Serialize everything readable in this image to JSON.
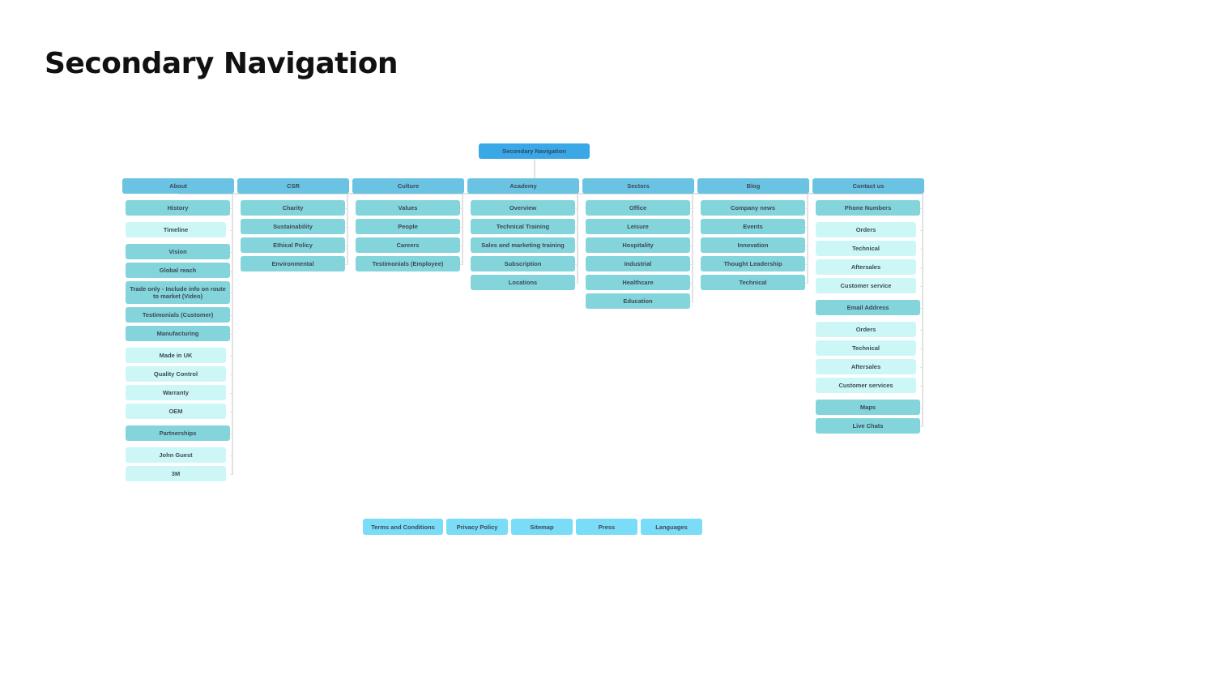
{
  "page_title": "Secondary Navigation",
  "root": "Secondary Navigation",
  "columns": [
    {
      "label": "About",
      "items": [
        {
          "label": "History",
          "level": 2
        },
        {
          "label": "Timeline",
          "level": 3
        },
        {
          "label": "Vision",
          "level": 2
        },
        {
          "label": "Global reach",
          "level": 2
        },
        {
          "label": "Trade only - Include info on route to market (Video)",
          "level": 2
        },
        {
          "label": "Testimonials (Customer)",
          "level": 2
        },
        {
          "label": "Manufacturing",
          "level": 2
        },
        {
          "label": "Made in UK",
          "level": 3
        },
        {
          "label": "Quality Control",
          "level": 3
        },
        {
          "label": "Warranty",
          "level": 3
        },
        {
          "label": "OEM",
          "level": 3
        },
        {
          "label": "Partnerships",
          "level": 2
        },
        {
          "label": "John Guest",
          "level": 3
        },
        {
          "label": "3M",
          "level": 3
        }
      ]
    },
    {
      "label": "CSR",
      "items": [
        {
          "label": "Charity",
          "level": 2
        },
        {
          "label": "Sustainability",
          "level": 2
        },
        {
          "label": "Ethical Policy",
          "level": 2
        },
        {
          "label": "Environmental",
          "level": 2
        }
      ]
    },
    {
      "label": "Culture",
      "items": [
        {
          "label": "Values",
          "level": 2
        },
        {
          "label": "People",
          "level": 2
        },
        {
          "label": "Careers",
          "level": 2
        },
        {
          "label": "Testimonials (Employee)",
          "level": 2
        }
      ]
    },
    {
      "label": "Academy",
      "items": [
        {
          "label": "Overview",
          "level": 2
        },
        {
          "label": "Technical Training",
          "level": 2
        },
        {
          "label": "Sales and marketing training",
          "level": 2
        },
        {
          "label": "Subscription",
          "level": 2
        },
        {
          "label": "Locations",
          "level": 2
        }
      ]
    },
    {
      "label": "Sectors",
      "items": [
        {
          "label": "Office",
          "level": 2
        },
        {
          "label": "Leisure",
          "level": 2
        },
        {
          "label": "Hospitality",
          "level": 2
        },
        {
          "label": "Industrial",
          "level": 2
        },
        {
          "label": "Healthcare",
          "level": 2
        },
        {
          "label": "Education",
          "level": 2
        }
      ]
    },
    {
      "label": "Blog",
      "items": [
        {
          "label": "Company news",
          "level": 2
        },
        {
          "label": "Events",
          "level": 2
        },
        {
          "label": "Innovation",
          "level": 2
        },
        {
          "label": "Thought Leadership",
          "level": 2
        },
        {
          "label": "Technical",
          "level": 2
        }
      ]
    },
    {
      "label": "Contact us",
      "items": [
        {
          "label": "Phone Numbers",
          "level": 2
        },
        {
          "label": "Orders",
          "level": 3
        },
        {
          "label": "Technical",
          "level": 3
        },
        {
          "label": "Aftersales",
          "level": 3
        },
        {
          "label": "Customer service",
          "level": 3
        },
        {
          "label": "Email Address",
          "level": 2
        },
        {
          "label": "Orders",
          "level": 3
        },
        {
          "label": "Technical",
          "level": 3
        },
        {
          "label": "Aftersales",
          "level": 3
        },
        {
          "label": "Customer services",
          "level": 3
        },
        {
          "label": "Maps",
          "level": 2
        },
        {
          "label": "Live Chats",
          "level": 2
        }
      ]
    }
  ],
  "footer": [
    "Terms and Conditions",
    "Privacy Policy",
    "Sitemap",
    "Press",
    "Languages"
  ],
  "colors": {
    "root": "#3aa8e6",
    "section": "#6bc3e3",
    "child": "#84d4dc",
    "grandchild": "#cdf7f7",
    "footer": "#7adcf7"
  }
}
